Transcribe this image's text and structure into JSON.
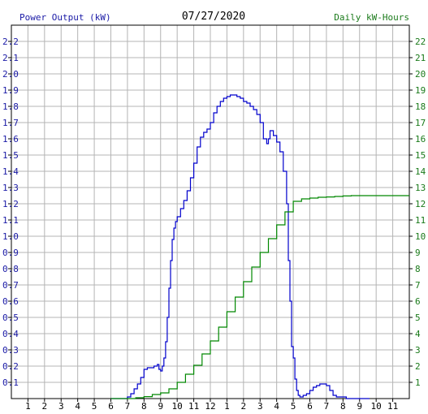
{
  "chart_data": {
    "type": "line",
    "title": "07/27/2020",
    "left_axis_label": "Power Output (kW)",
    "right_axis_label": "Daily kW-Hours",
    "x_ticks": [
      "1",
      "2",
      "3",
      "4",
      "5",
      "6",
      "7",
      "8",
      "9",
      "10",
      "11",
      "12",
      "1",
      "2",
      "3",
      "4",
      "5",
      "6",
      "7",
      "8",
      "9",
      "10",
      "11"
    ],
    "left_ticks": [
      "0.1",
      "0.2",
      "0.3",
      "0.4",
      "0.5",
      "0.6",
      "0.7",
      "0.8",
      "0.9",
      "1.0",
      "1.1",
      "1.2",
      "1.3",
      "1.4",
      "1.5",
      "1.6",
      "1.7",
      "1.8",
      "1.9",
      "2.0",
      "2.1",
      "2.2"
    ],
    "right_ticks": [
      "1",
      "2",
      "3",
      "4",
      "5",
      "6",
      "7",
      "8",
      "9",
      "10",
      "11",
      "12",
      "13",
      "14",
      "15",
      "16",
      "17",
      "18",
      "19",
      "20",
      "21",
      "22"
    ],
    "x_range": [
      0,
      24
    ],
    "left_range": [
      0,
      2.3
    ],
    "right_range": [
      0,
      23
    ],
    "grid": true,
    "colors": {
      "power": "#0000cc",
      "energy": "#008800",
      "grid": "#b4b4b4",
      "left_text": "#1a1aa6",
      "right_text": "#1a7a1a"
    },
    "series": [
      {
        "name": "Power Output (kW)",
        "axis": "left",
        "x": [
          6.0,
          6.9,
          7.0,
          7.2,
          7.4,
          7.6,
          7.8,
          8.0,
          8.2,
          8.4,
          8.6,
          8.8,
          8.9,
          9.0,
          9.1,
          9.2,
          9.3,
          9.4,
          9.5,
          9.6,
          9.7,
          9.8,
          9.9,
          10.0,
          10.2,
          10.4,
          10.6,
          10.8,
          11.0,
          11.2,
          11.4,
          11.6,
          11.8,
          12.0,
          12.2,
          12.4,
          12.6,
          12.8,
          13.0,
          13.2,
          13.4,
          13.6,
          13.8,
          14.0,
          14.2,
          14.4,
          14.6,
          14.8,
          15.0,
          15.2,
          15.4,
          15.5,
          15.6,
          15.8,
          16.0,
          16.2,
          16.4,
          16.6,
          16.7,
          16.8,
          16.9,
          17.0,
          17.1,
          17.2,
          17.3,
          17.4,
          17.5,
          17.6,
          17.8,
          18.0,
          18.2,
          18.4,
          18.6,
          18.8,
          19.0,
          19.2,
          19.4,
          19.6,
          19.8,
          20.0,
          20.2,
          20.4,
          20.6,
          20.8,
          21.0,
          21.2,
          21.6
        ],
        "values": [
          0.0,
          0.0,
          0.01,
          0.03,
          0.06,
          0.09,
          0.13,
          0.18,
          0.19,
          0.19,
          0.2,
          0.21,
          0.18,
          0.17,
          0.2,
          0.25,
          0.35,
          0.5,
          0.68,
          0.85,
          0.98,
          1.05,
          1.09,
          1.12,
          1.17,
          1.22,
          1.28,
          1.36,
          1.45,
          1.55,
          1.61,
          1.64,
          1.66,
          1.7,
          1.76,
          1.8,
          1.83,
          1.85,
          1.86,
          1.87,
          1.87,
          1.86,
          1.85,
          1.83,
          1.82,
          1.8,
          1.78,
          1.75,
          1.7,
          1.6,
          1.57,
          1.6,
          1.65,
          1.62,
          1.58,
          1.52,
          1.4,
          1.2,
          0.85,
          0.6,
          0.32,
          0.25,
          0.12,
          0.05,
          0.02,
          0.01,
          0.01,
          0.02,
          0.03,
          0.05,
          0.07,
          0.08,
          0.09,
          0.09,
          0.08,
          0.05,
          0.02,
          0.01,
          0.01,
          0.01,
          0.0,
          0.0,
          0.0,
          0.0,
          0.0,
          0.0,
          0.0
        ]
      },
      {
        "name": "Daily kW-Hours",
        "axis": "right",
        "x": [
          6.0,
          6.9,
          7.5,
          8.0,
          8.5,
          9.0,
          9.5,
          10.0,
          10.5,
          11.0,
          11.5,
          12.0,
          12.5,
          13.0,
          13.5,
          14.0,
          14.5,
          15.0,
          15.5,
          16.0,
          16.5,
          17.0,
          17.5,
          18.0,
          18.5,
          19.0,
          19.5,
          20.0,
          20.5,
          21.0,
          22.0,
          23.0,
          24.0
        ],
        "values": [
          0.0,
          0.0,
          0.05,
          0.12,
          0.25,
          0.35,
          0.6,
          1.0,
          1.5,
          2.05,
          2.75,
          3.55,
          4.4,
          5.35,
          6.25,
          7.2,
          8.1,
          9.0,
          9.85,
          10.7,
          11.5,
          12.15,
          12.3,
          12.35,
          12.4,
          12.42,
          12.45,
          12.48,
          12.5,
          12.5,
          12.5,
          12.5,
          12.5
        ]
      }
    ]
  }
}
